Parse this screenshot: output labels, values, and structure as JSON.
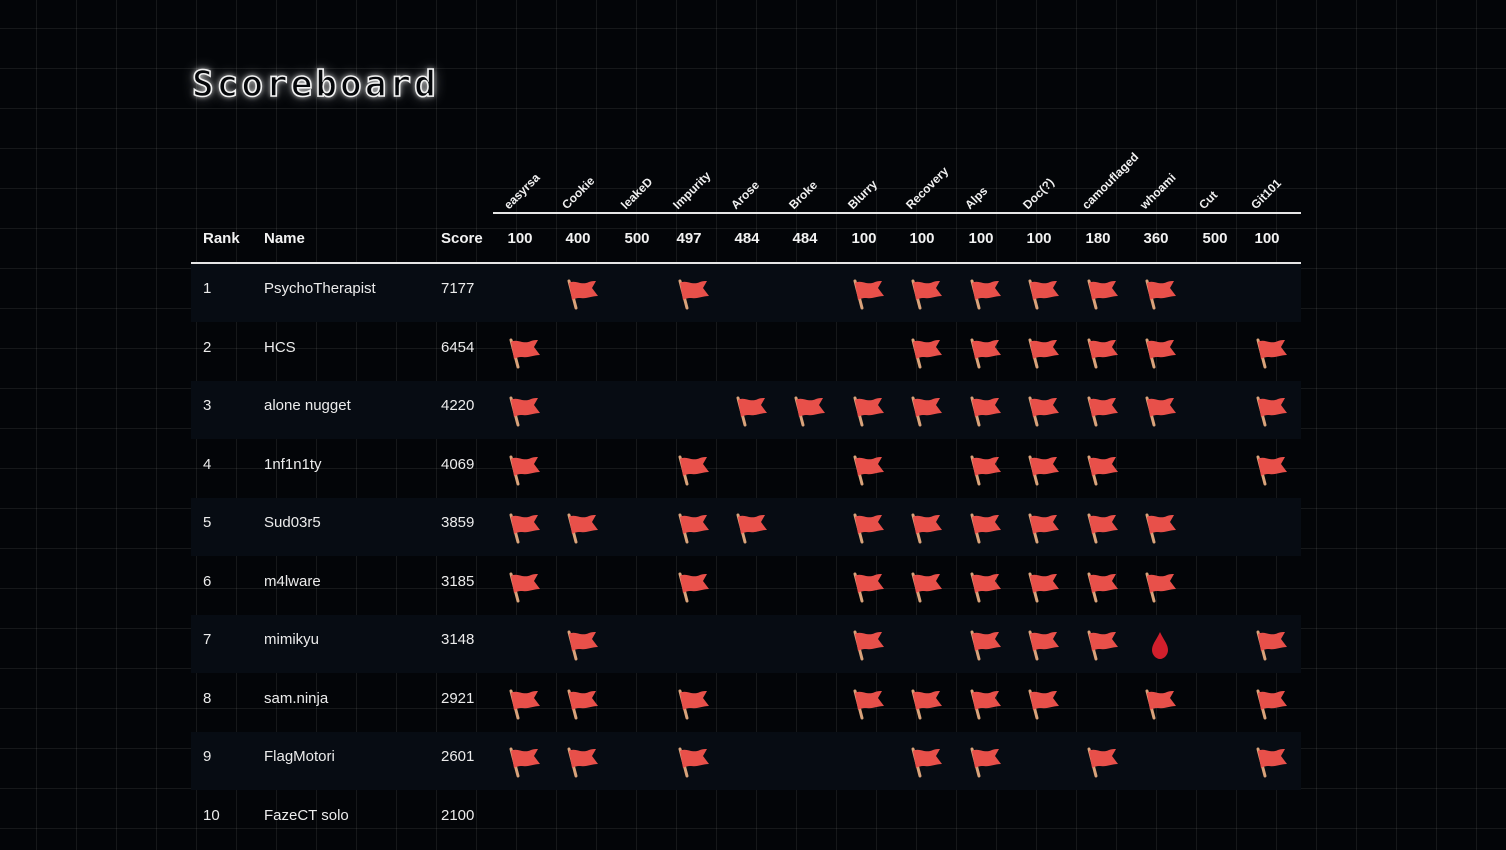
{
  "page": {
    "title": "Scoreboard"
  },
  "colors": {
    "background": "#030508",
    "flag": "#e8504a",
    "pole": "#d9a37a",
    "first_blood": "#d21f2c"
  },
  "table": {
    "headers": {
      "rank": "Rank",
      "name": "Name",
      "score": "Score"
    },
    "challenges": [
      {
        "name": "easyrsa",
        "points": "100"
      },
      {
        "name": "Cookie",
        "points": "400"
      },
      {
        "name": "leakeD",
        "points": "500"
      },
      {
        "name": "Impurity",
        "points": "497"
      },
      {
        "name": "Arose",
        "points": "484"
      },
      {
        "name": "Broke",
        "points": "484"
      },
      {
        "name": "Blurry",
        "points": "100"
      },
      {
        "name": "Recovery",
        "points": "100"
      },
      {
        "name": "Alps",
        "points": "100"
      },
      {
        "name": "Doc(?)",
        "points": "100"
      },
      {
        "name": "camouflaged",
        "points": "180"
      },
      {
        "name": "whoami",
        "points": "360"
      },
      {
        "name": "Cut",
        "points": "500"
      },
      {
        "name": "Git101",
        "points": "100"
      }
    ],
    "rows": [
      {
        "rank": "1",
        "name": "PsychoTherapist",
        "score": "7177",
        "solves": [
          "",
          "flag",
          "",
          "flag",
          "",
          "",
          "flag",
          "flag",
          "flag",
          "flag",
          "flag",
          "flag",
          "",
          ""
        ]
      },
      {
        "rank": "2",
        "name": "HCS",
        "score": "6454",
        "solves": [
          "flag",
          "",
          "",
          "",
          "",
          "",
          "",
          "flag",
          "flag",
          "flag",
          "flag",
          "flag",
          "",
          "flag"
        ]
      },
      {
        "rank": "3",
        "name": "alone nugget",
        "score": "4220",
        "solves": [
          "flag",
          "",
          "",
          "",
          "flag",
          "flag",
          "flag",
          "flag",
          "flag",
          "flag",
          "flag",
          "flag",
          "",
          "flag"
        ]
      },
      {
        "rank": "4",
        "name": "1nf1n1ty",
        "score": "4069",
        "solves": [
          "flag",
          "",
          "",
          "flag",
          "",
          "",
          "flag",
          "",
          "flag",
          "flag",
          "flag",
          "",
          "",
          "flag"
        ]
      },
      {
        "rank": "5",
        "name": "Sud03r5",
        "score": "3859",
        "solves": [
          "flag",
          "flag",
          "",
          "flag",
          "flag",
          "",
          "flag",
          "flag",
          "flag",
          "flag",
          "flag",
          "flag",
          "",
          ""
        ]
      },
      {
        "rank": "6",
        "name": "m4lware",
        "score": "3185",
        "solves": [
          "flag",
          "",
          "",
          "flag",
          "",
          "",
          "flag",
          "flag",
          "flag",
          "flag",
          "flag",
          "flag",
          "",
          ""
        ]
      },
      {
        "rank": "7",
        "name": "mimikyu",
        "score": "3148",
        "solves": [
          "",
          "flag",
          "",
          "",
          "",
          "",
          "flag",
          "",
          "flag",
          "flag",
          "flag",
          "blood",
          "",
          "flag"
        ]
      },
      {
        "rank": "8",
        "name": "sam.ninja",
        "score": "2921",
        "solves": [
          "flag",
          "flag",
          "",
          "flag",
          "",
          "",
          "flag",
          "flag",
          "flag",
          "flag",
          "",
          "flag",
          "",
          "flag"
        ]
      },
      {
        "rank": "9",
        "name": "FlagMotori",
        "score": "2601",
        "solves": [
          "flag",
          "flag",
          "",
          "flag",
          "",
          "",
          "",
          "flag",
          "flag",
          "",
          "flag",
          "",
          "",
          "flag"
        ]
      },
      {
        "rank": "10",
        "name": "FazeCT solo",
        "score": "2100",
        "solves": [
          "",
          "",
          "",
          "",
          "",
          "",
          "",
          "",
          "",
          "",
          "",
          "",
          "",
          ""
        ]
      }
    ]
  }
}
